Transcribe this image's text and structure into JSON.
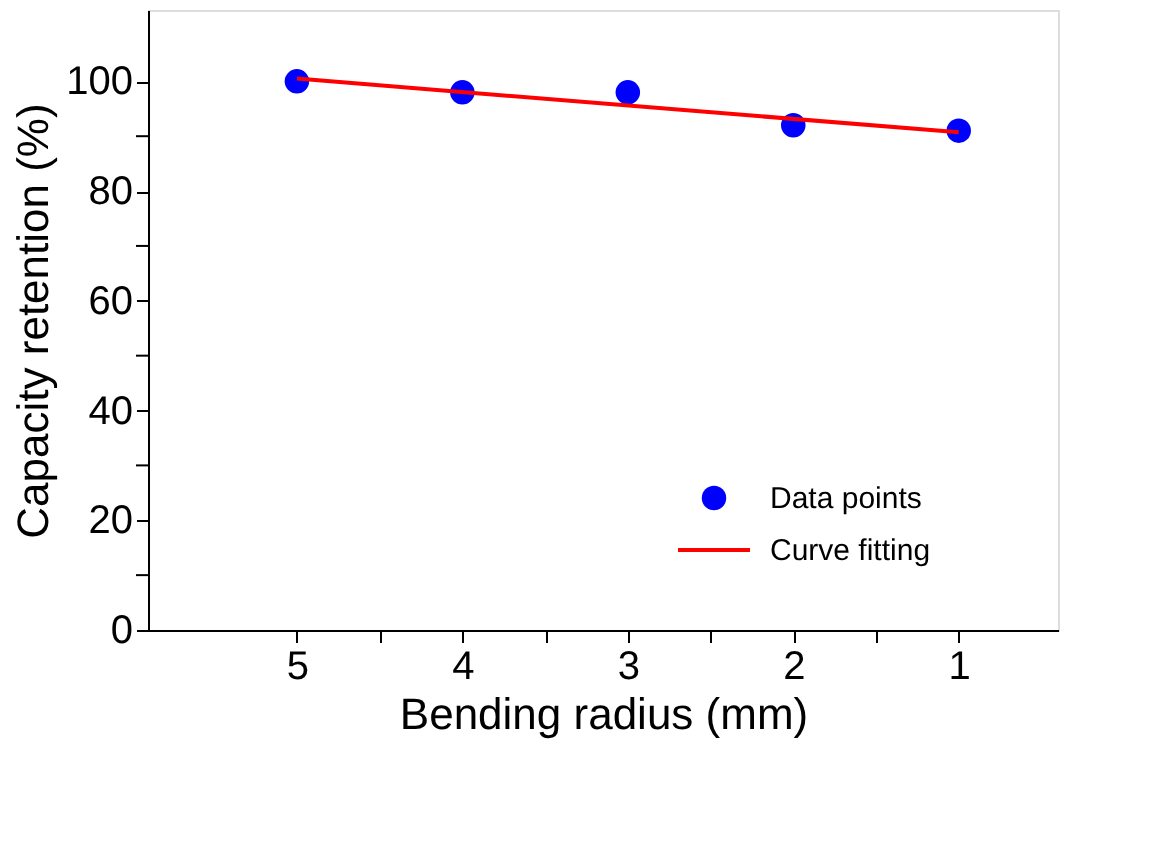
{
  "chart_data": {
    "type": "scatter",
    "xlabel": "Bending radius (mm)",
    "ylabel": "Capacity retention (%)",
    "xlim": [
      5.9,
      0.4
    ],
    "ylim": [
      0,
      113
    ],
    "xticks": [
      5,
      {
        "value": 4.5,
        "label": null
      },
      4,
      {
        "value": 3.5,
        "label": null
      },
      3,
      {
        "value": 2.5,
        "label": null
      },
      2,
      {
        "value": 1.5,
        "label": null
      },
      1
    ],
    "yticks": [
      0,
      {
        "value": 10,
        "label": null
      },
      20,
      {
        "value": 30,
        "label": null
      },
      40,
      {
        "value": 50,
        "label": null
      },
      60,
      {
        "value": 70,
        "label": null
      },
      80,
      {
        "value": 90,
        "label": null
      },
      100
    ],
    "grid": false,
    "legend": "bottom right",
    "marker": "circle",
    "series": [
      {
        "name": "Data points",
        "color": "#0000ff",
        "x": [
          5,
          4,
          3,
          2,
          1
        ],
        "values": [
          100,
          98,
          98,
          92,
          91
        ]
      },
      {
        "name": "Curve fitting",
        "type": "line",
        "color": "#ff0000",
        "line_style": "solid",
        "marker": "none",
        "x": [
          5,
          1
        ],
        "values": [
          100.5,
          90.7
        ]
      }
    ]
  }
}
